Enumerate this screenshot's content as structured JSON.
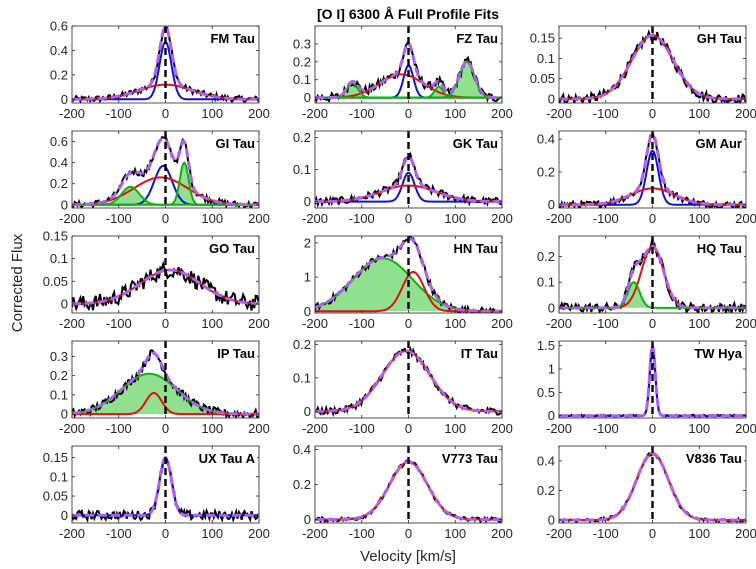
{
  "figure": {
    "title": "[O I] 6300 Å Full Profile Fits",
    "xlabel": "Velocity [km/s]",
    "ylabel": "Corrected Flux"
  },
  "colors": {
    "data": "#000000",
    "total_fit": "#b060f0",
    "narrow": "#1010e0",
    "broad": "#e01010",
    "hvc_line": "#10b010",
    "hvc_fill": "#90e090",
    "zero_velocity": "#000000"
  },
  "chart_data": [
    {
      "type": "line",
      "title": "FM Tau",
      "xlim": [
        -200,
        200
      ],
      "ylim": [
        -0.03,
        0.6
      ],
      "xticks": [
        "-200",
        "-100",
        "0",
        "100",
        "200"
      ],
      "yticks": [
        "0",
        "0.2",
        "0.4",
        "0.6"
      ],
      "components": [
        {
          "name": "",
          "role": "narrow",
          "center": 0,
          "fwhm": 30,
          "amp": 0.47
        },
        {
          "name": "",
          "role": "broad",
          "center": 0,
          "fwhm": 135,
          "amp": 0.12
        }
      ],
      "noise": 0.025,
      "peak": 0.6
    },
    {
      "type": "line",
      "title": "FZ Tau",
      "xlim": [
        -200,
        200
      ],
      "ylim": [
        -0.03,
        0.4
      ],
      "xticks": [
        "-200",
        "-100",
        "0",
        "100",
        "200"
      ],
      "yticks": [
        "0",
        "0.1",
        "0.2",
        "0.3"
      ],
      "components": [
        {
          "name": "",
          "role": "narrow",
          "center": 0,
          "fwhm": 25,
          "amp": 0.18
        },
        {
          "name": "",
          "role": "broad",
          "center": -15,
          "fwhm": 110,
          "amp": 0.13
        },
        {
          "name": "",
          "role": "hvc",
          "center": -120,
          "fwhm": 28,
          "amp": 0.08
        },
        {
          "name": "",
          "role": "hvc",
          "center": 65,
          "fwhm": 22,
          "amp": 0.06
        },
        {
          "name": "",
          "role": "hvc",
          "center": 125,
          "fwhm": 38,
          "amp": 0.2
        }
      ],
      "noise": 0.025,
      "peak": 0.4
    },
    {
      "type": "line",
      "title": "GH Tau",
      "xlim": [
        -200,
        200
      ],
      "ylim": [
        -0.01,
        0.18
      ],
      "xticks": [
        "-200",
        "-100",
        "0",
        "100",
        "200"
      ],
      "yticks": [
        "0",
        "0.05",
        "0.1",
        "0.15"
      ],
      "components": [
        {
          "name": "",
          "role": "broad",
          "center": 0,
          "fwhm": 105,
          "amp": 0.157
        }
      ],
      "noise": 0.012,
      "peak": 0.18
    },
    {
      "type": "line",
      "title": "GI Tau",
      "xlim": [
        -200,
        200
      ],
      "ylim": [
        -0.03,
        0.7
      ],
      "xticks": [
        "-200",
        "-100",
        "0",
        "100",
        "200"
      ],
      "yticks": [
        "0",
        "0.2",
        "0.4",
        "0.6"
      ],
      "components": [
        {
          "name": "",
          "role": "narrow",
          "center": -5,
          "fwhm": 45,
          "amp": 0.37
        },
        {
          "name": "",
          "role": "broad",
          "center": -10,
          "fwhm": 135,
          "amp": 0.26
        },
        {
          "name": "",
          "role": "hvc",
          "center": -75,
          "fwhm": 45,
          "amp": 0.17
        },
        {
          "name": "",
          "role": "hvc",
          "center": 40,
          "fwhm": 22,
          "amp": 0.4
        }
      ],
      "noise": 0.03,
      "peak": 0.7
    },
    {
      "type": "line",
      "title": "GK Tau",
      "xlim": [
        -200,
        200
      ],
      "ylim": [
        -0.02,
        0.22
      ],
      "xticks": [
        "-200",
        "-100",
        "0",
        "100",
        "200"
      ],
      "yticks": [
        "0",
        "0.1",
        "0.2"
      ],
      "components": [
        {
          "name": "",
          "role": "narrow",
          "center": 0,
          "fwhm": 30,
          "amp": 0.09
        },
        {
          "name": "",
          "role": "broad",
          "center": 0,
          "fwhm": 140,
          "amp": 0.05
        }
      ],
      "noise": 0.012,
      "peak": 0.22
    },
    {
      "type": "line",
      "title": "GM Aur",
      "xlim": [
        -200,
        200
      ],
      "ylim": [
        -0.02,
        0.45
      ],
      "xticks": [
        "-200",
        "-100",
        "0",
        "100",
        "200"
      ],
      "yticks": [
        "0",
        "0.2",
        "0.4"
      ],
      "components": [
        {
          "name": "",
          "role": "narrow",
          "center": 0,
          "fwhm": 30,
          "amp": 0.33
        },
        {
          "name": "",
          "role": "broad",
          "center": 0,
          "fwhm": 110,
          "amp": 0.1
        }
      ],
      "noise": 0.02,
      "peak": 0.45
    },
    {
      "type": "line",
      "title": "GO Tau",
      "xlim": [
        -200,
        200
      ],
      "ylim": [
        -0.02,
        0.15
      ],
      "xticks": [
        "-200",
        "-100",
        "0",
        "100",
        "200"
      ],
      "yticks": [
        "0",
        "0.05",
        "0.1",
        "0.15"
      ],
      "components": [
        {
          "name": "",
          "role": "broad",
          "center": 10,
          "fwhm": 150,
          "amp": 0.075
        }
      ],
      "noise": 0.018,
      "peak": 0.15
    },
    {
      "type": "line",
      "title": "HN Tau",
      "xlim": [
        -200,
        200
      ],
      "ylim": [
        -0.05,
        2.2
      ],
      "xticks": [
        "-200",
        "-100",
        "0",
        "100",
        "200"
      ],
      "yticks": [
        "0",
        "1",
        "2"
      ],
      "components": [
        {
          "name": "",
          "role": "hvc",
          "center": -55,
          "fwhm": 150,
          "amp": 1.55
        },
        {
          "name": "",
          "role": "broad",
          "center": 10,
          "fwhm": 55,
          "amp": 1.15
        }
      ],
      "noise": 0.1,
      "peak": 2.2
    },
    {
      "type": "line",
      "title": "HQ Tau",
      "xlim": [
        -200,
        200
      ],
      "ylim": [
        -0.02,
        0.28
      ],
      "xticks": [
        "-200",
        "-100",
        "0",
        "100",
        "200"
      ],
      "yticks": [
        "0",
        "0.1",
        "0.2"
      ],
      "components": [
        {
          "name": "",
          "role": "broad",
          "center": 0,
          "fwhm": 55,
          "amp": 0.24
        },
        {
          "name": "",
          "role": "hvc",
          "center": -40,
          "fwhm": 30,
          "amp": 0.1
        }
      ],
      "noise": 0.018,
      "peak": 0.28
    },
    {
      "type": "line",
      "title": "IP Tau",
      "xlim": [
        -200,
        200
      ],
      "ylim": [
        -0.02,
        0.38
      ],
      "xticks": [
        "-200",
        "-100",
        "0",
        "100",
        "200"
      ],
      "yticks": [
        "0",
        "0.1",
        "0.2",
        "0.3"
      ],
      "components": [
        {
          "name": "",
          "role": "hvc",
          "center": -35,
          "fwhm": 140,
          "amp": 0.21
        },
        {
          "name": "",
          "role": "broad",
          "center": -25,
          "fwhm": 40,
          "amp": 0.11
        }
      ],
      "noise": 0.022,
      "peak": 0.38
    },
    {
      "type": "line",
      "title": "IT Tau",
      "xlim": [
        -200,
        200
      ],
      "ylim": [
        -0.02,
        0.21
      ],
      "xticks": [
        "-200",
        "-100",
        "0",
        "100",
        "200"
      ],
      "yticks": [
        "0",
        "0.1",
        "0.2"
      ],
      "components": [
        {
          "name": "",
          "role": "broad",
          "center": -5,
          "fwhm": 120,
          "amp": 0.18
        }
      ],
      "noise": 0.01,
      "peak": 0.21
    },
    {
      "type": "line",
      "title": "TW Hya",
      "xlim": [
        -200,
        200
      ],
      "ylim": [
        -0.05,
        1.6
      ],
      "xticks": [
        "-200",
        "-100",
        "0",
        "100",
        "200"
      ],
      "yticks": [
        "0",
        "0.5",
        "1",
        "1.5"
      ],
      "components": [
        {
          "name": "",
          "role": "narrow",
          "center": 0,
          "fwhm": 14,
          "amp": 1.5
        }
      ],
      "noise": 0.02,
      "peak": 1.6
    },
    {
      "type": "line",
      "title": "UX Tau A",
      "xlim": [
        -200,
        200
      ],
      "ylim": [
        -0.02,
        0.18
      ],
      "xticks": [
        "-200",
        "-100",
        "0",
        "100",
        "200"
      ],
      "yticks": [
        "0",
        "0.05",
        "0.1",
        "0.15"
      ],
      "components": [
        {
          "name": "",
          "role": "narrow",
          "center": 0,
          "fwhm": 30,
          "amp": 0.15
        }
      ],
      "noise": 0.012,
      "peak": 0.18
    },
    {
      "type": "line",
      "title": "V773 Tau",
      "xlim": [
        -200,
        200
      ],
      "ylim": [
        -0.02,
        0.42
      ],
      "xticks": [
        "-200",
        "-100",
        "0",
        "100",
        "200"
      ],
      "yticks": [
        "0",
        "0.2",
        "0.4"
      ],
      "components": [
        {
          "name": "",
          "role": "broad",
          "center": 0,
          "fwhm": 95,
          "amp": 0.33
        }
      ],
      "noise": 0.012,
      "peak": 0.42
    },
    {
      "type": "line",
      "title": "V836 Tau",
      "xlim": [
        -200,
        200
      ],
      "ylim": [
        -0.02,
        0.5
      ],
      "xticks": [
        "-200",
        "-100",
        "0",
        "100",
        "200"
      ],
      "yticks": [
        "0",
        "0.2",
        "0.4"
      ],
      "components": [
        {
          "name": "",
          "role": "broad",
          "center": 0,
          "fwhm": 80,
          "amp": 0.45
        }
      ],
      "noise": 0.012,
      "peak": 0.5
    }
  ]
}
